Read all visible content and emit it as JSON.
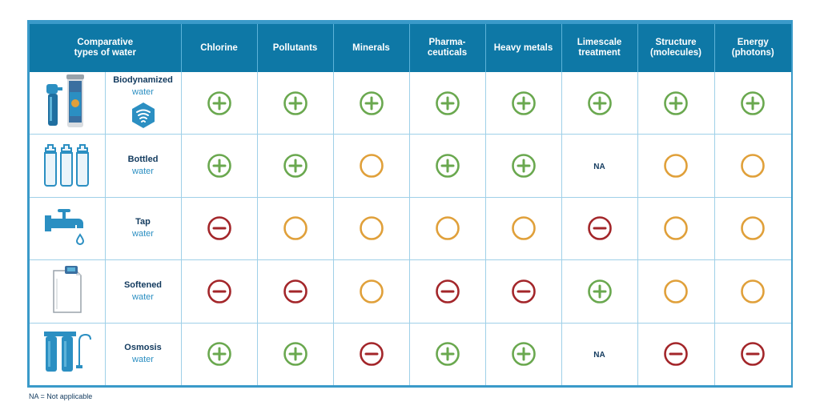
{
  "header": {
    "corner": "Comparative\ntypes of water",
    "columns": [
      "Chlorine",
      "Pollutants",
      "Minerals",
      "Pharma-\nceuticals",
      "Heavy metals",
      "Limescale\ntreatment",
      "Structure\n(molecules)",
      "Energy\n(photons)"
    ]
  },
  "rows": [
    {
      "name": "Biodynamized",
      "sub": "water",
      "icon": "water-filter-icon",
      "values": [
        "plus",
        "plus",
        "plus",
        "plus",
        "plus",
        "plus",
        "plus",
        "plus"
      ]
    },
    {
      "name": "Bottled",
      "sub": "water",
      "icon": "water-bottles-icon",
      "values": [
        "plus",
        "plus",
        "neutral",
        "plus",
        "plus",
        "na",
        "neutral",
        "neutral"
      ]
    },
    {
      "name": "Tap",
      "sub": "water",
      "icon": "tap-icon",
      "values": [
        "minus",
        "neutral",
        "neutral",
        "neutral",
        "neutral",
        "minus",
        "neutral",
        "neutral"
      ]
    },
    {
      "name": "Softened",
      "sub": "water",
      "icon": "water-softener-icon",
      "values": [
        "minus",
        "minus",
        "neutral",
        "minus",
        "minus",
        "plus",
        "neutral",
        "neutral"
      ]
    },
    {
      "name": "Osmosis",
      "sub": "water",
      "icon": "osmosis-filter-icon",
      "values": [
        "plus",
        "plus",
        "minus",
        "plus",
        "plus",
        "na",
        "minus",
        "minus"
      ]
    }
  ],
  "na_label": "NA",
  "footnote": "NA = Not applicable",
  "colors": {
    "header_bg": "#0e78a6",
    "border": "#3a9ac9",
    "plus": "#6aa84f",
    "neutral": "#e0a03a",
    "minus": "#a3262a",
    "name_dark": "#123a5e",
    "name_light": "#2b8fc2"
  }
}
